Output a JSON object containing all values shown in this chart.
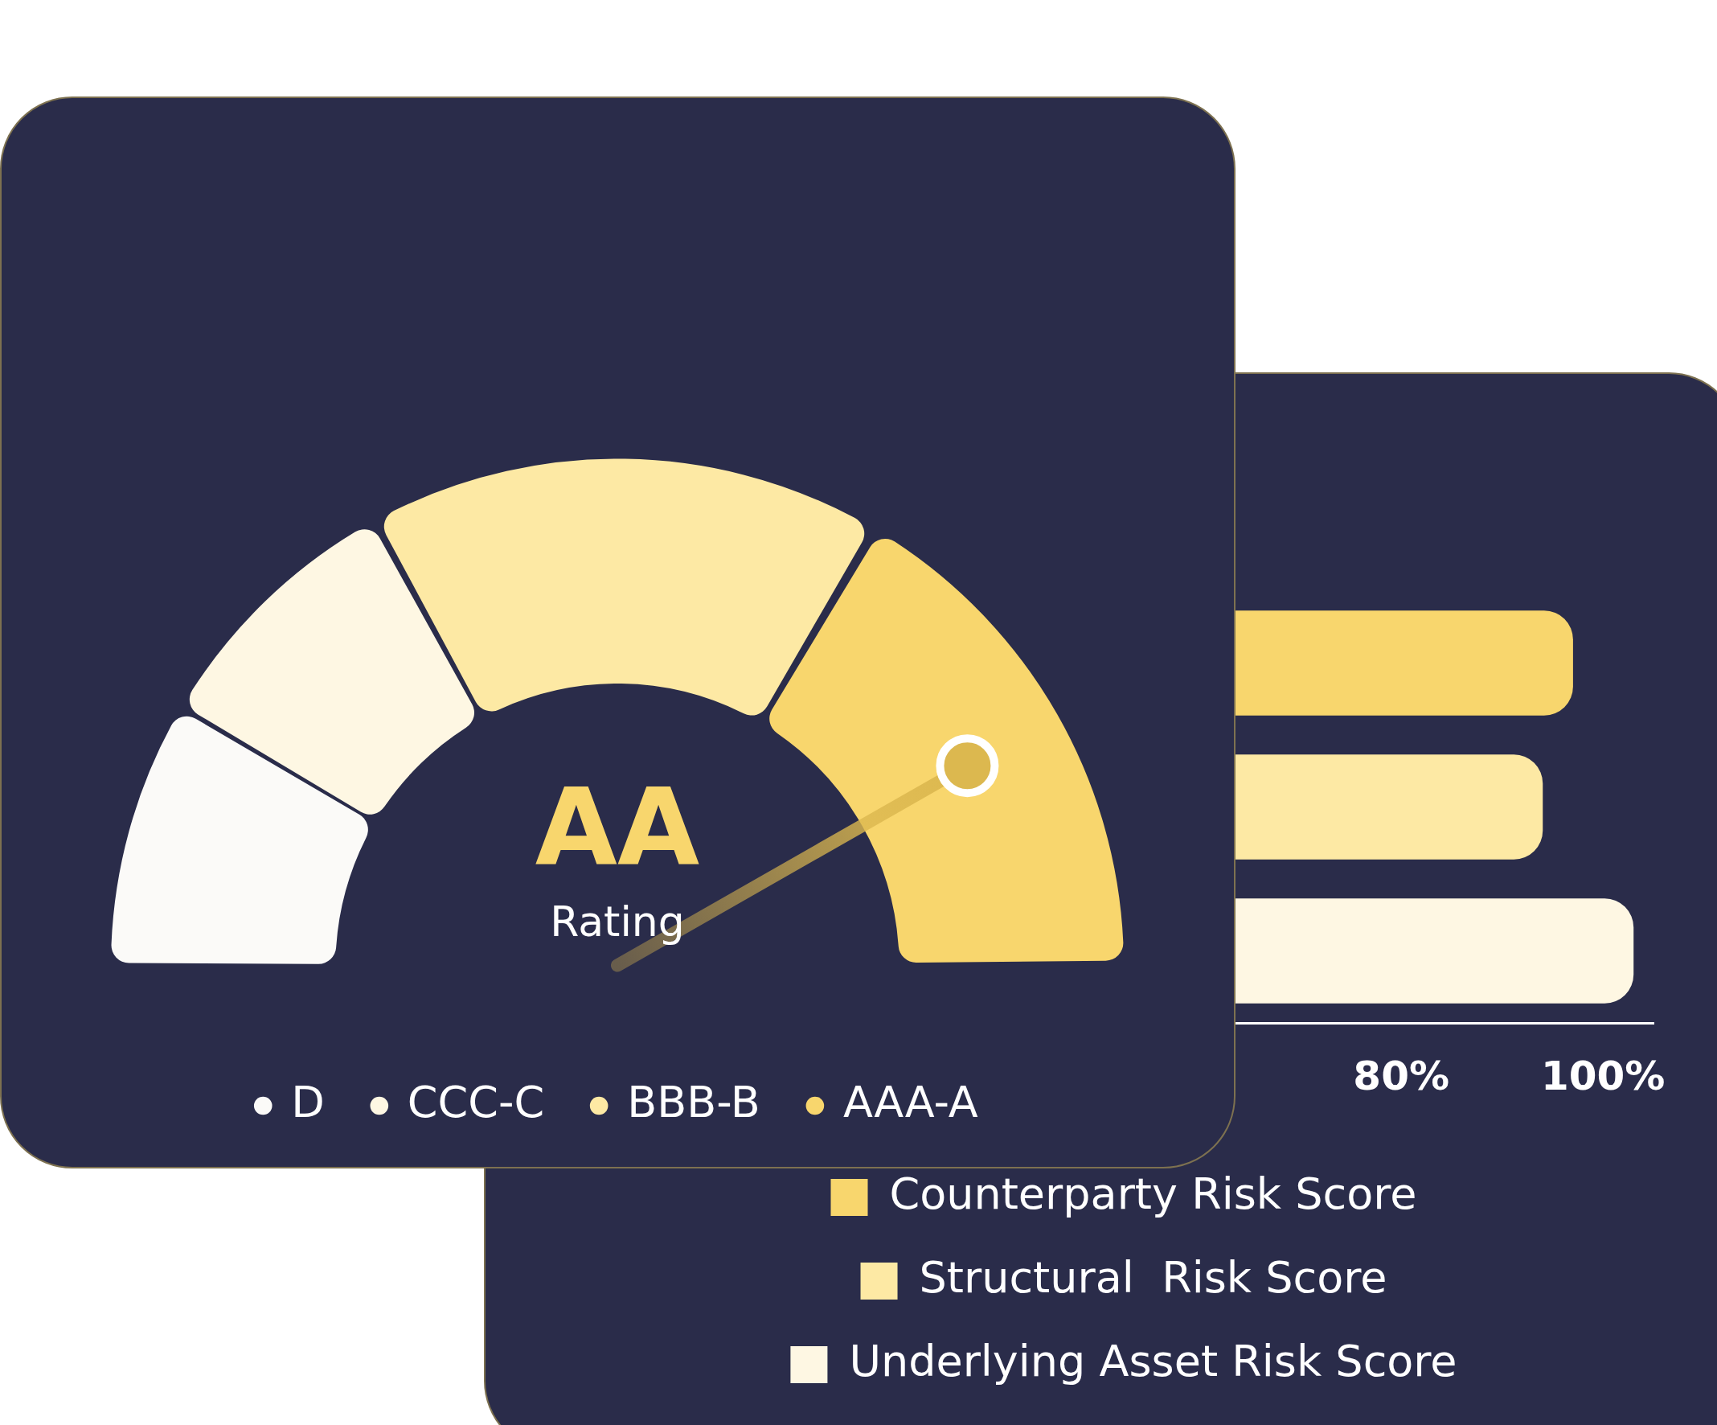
{
  "chart_data": [
    {
      "type": "donut",
      "categories": [
        "D",
        "CCC-C",
        "BBB-B",
        "AAA-A"
      ],
      "values": [
        17,
        17,
        33,
        33
      ],
      "colors": [
        "#fbfaf8",
        "#fef7e3",
        "#fde9a4",
        "#f8d66d"
      ],
      "needle": "AAA-A",
      "legend": "bottom",
      "annotations": [
        "AA",
        "Rating"
      ]
    },
    {
      "type": "bar",
      "orientation": "horizontal",
      "stacked": true,
      "categories": [
        null,
        null,
        null
      ],
      "series": [
        {
          "name": "Counterparty Risk Score",
          "color": "#f8d66d",
          "values": [
            97,
            null,
            null
          ]
        },
        {
          "name": "Structural  Risk Score",
          "color": "#fde9a4",
          "values": [
            null,
            94,
            null
          ]
        },
        {
          "name": "Underlying Asset Risk Score",
          "color": "#fef7e3",
          "values": [
            null,
            null,
            103
          ]
        }
      ],
      "xlim": [
        0,
        105
      ],
      "xticks": [
        {
          "value": 80,
          "label": "80%"
        },
        {
          "value": 100,
          "label": "100%"
        }
      ],
      "grid": false,
      "legend": "bottom"
    }
  ]
}
